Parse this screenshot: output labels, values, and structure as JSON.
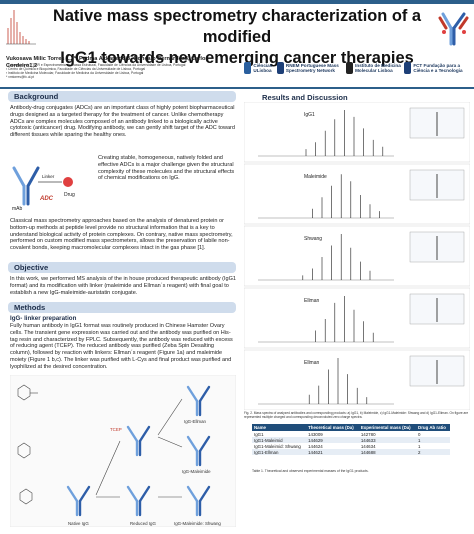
{
  "header": {
    "title_line1": "Native mass spectrometry characterization of a modified",
    "title_line2": "IgG1  towards new emerging cancer therapies",
    "authors": "Vukosava Milic Torres 1,2*, Padma Akkapeddi3, Gonçalo Bernardes3, Carlos Cordeiro1,2",
    "affiliations": [
      "¹ Laboratório de FTICR e Espectrometria de Massa Estrutural, Faculdade de Ciências da Universidade de Lisboa, Portugal",
      "² Centro de Química e Bioquímica, Faculdade de Ciências da Universidade de Lisboa, Portugal",
      "³ Instituto de Medicina Molecular, Faculdade de Medicina da Universidade de Lisboa, Portugal",
      "* vmtorres@fc.ul.pt"
    ],
    "logos": [
      {
        "name": "Ciências ULisboa",
        "color": "#2a5f9e"
      },
      {
        "name": "RNEM Portuguese Mass Spectrometry Network",
        "color": "#1d3f77"
      },
      {
        "name": "Instituto de Medicina Molecular Lisboa",
        "color": "#222222"
      },
      {
        "name": "FCT Fundação para a Ciência e a Tecnologia",
        "color": "#1d3f77"
      }
    ]
  },
  "background": {
    "heading": "Background",
    "para1": "Antibody-drug conjugates (ADCs) are an important class of highly potent biopharmaceutical drugs designed as a targeted therapy for the treatment of cancer. Unlike chemotherapy ADCs are complex molecules composed of an antibody linked to a biologically active cytotoxic (anticancer) drug. Modifying antibody, we can gently shift target of the ADC toward different tissues while sparing the healthy ones.",
    "diagram_labels": {
      "mab": "mAb",
      "linker": "Linker",
      "drug": "Drug",
      "adc": "ADC"
    },
    "para2": "Creating stable, homogeneous, natively folded and effective ADCs is a major challenge given the structural complexity of these molecules and the structural effects of chemical modifications on IgG.",
    "para3": "Classical mass spectrometry approaches based on the analysis of denatured protein or bottom-up methods at peptide level provide no structural information that is a key to understand biological activity of protein complexes. On contrary, native mass spectrometry, performed on custom modified mass spectrometers, allows the preservation of labile non-covalent bonds, keeping macromolecular complexes intact in the gas phase [1]."
  },
  "objective": {
    "heading": "Objective",
    "text": "In this work, we performed MS analysis of the in house produced therapeutic antibody (IgG1 format) and its modification with linker (maleimide and Ellman´s reagent) with final goal to establish a new IgG-maleimide-auristatin conjugate."
  },
  "methods": {
    "heading": "Methods",
    "subheading": "IgG- linker preparation",
    "text": "Fully human antibody in IgG1 format was routinely produced in Chinese Hamster Ovary cells. The transient gene expression was carried out and the antibody was purified on His-tag resin and characterized by FPLC. Subsequently, the antibody was reduced with excess of reducing agent (TCEP). The reduced antibody was purified (Zeba Spin Desalting column), followed by reaction with linkers: Ellman´s reagent (Figure 1a) and maleimide moiety (Figure 1 b,c). The linker was purified with L-Cys and final product was purified and lyophilized at the desired concentration.",
    "scheme_labels": [
      "Native IgG",
      "TCEP",
      "Reduced IgG",
      "IgG-Ellman",
      "IgG-Maleimide",
      "IgG-Maleimide: Shwang"
    ]
  },
  "results": {
    "heading": "Results and Discussion",
    "spectra": [
      {
        "label": "IgG1"
      },
      {
        "label": "Maleimide"
      },
      {
        "label": "Shwang"
      },
      {
        "label": "Ellman"
      },
      {
        "label": "Ellman"
      }
    ],
    "figure_caption": "Fig. 2.  Mass spectra of analyzed antibodies and corresponding products: a) IgG1, b) Maleimide, c) IgG1-Maleimide: Shwang and d) IgG1-Ellman. On figure are represented multiple charged and corresponding deconvoluted zero charge spectra.",
    "table": {
      "headers": [
        "Name",
        "Theoretical mass (Da)",
        "Experimental mass (Da)",
        "Drug Ab ratio"
      ],
      "rows": [
        [
          "IgG1",
          "143009",
          "142780",
          "0"
        ],
        [
          "IgG1-Maleimid",
          "144629",
          "144633",
          "1"
        ],
        [
          "IgG1-Maleimid: Shwang",
          "144624",
          "144634",
          "1"
        ],
        [
          "IgG1-Ellman",
          "144621",
          "144688",
          "2"
        ]
      ],
      "caption": "Table 1.  Theoretical and observed experimental masses of the IgG1 products."
    }
  }
}
